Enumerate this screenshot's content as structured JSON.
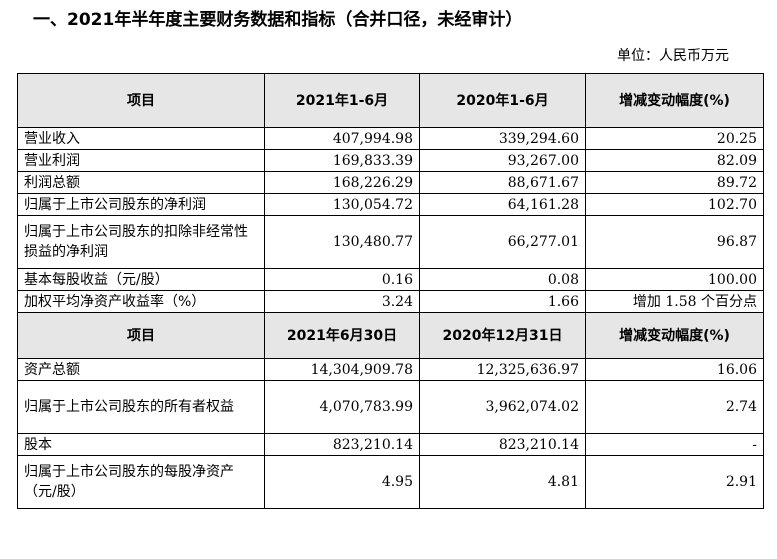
{
  "title": "一、2021年半年度主要财务数据和指标（合并口径，未经审计）",
  "unit": "单位：人民币万元",
  "section1": {
    "headers": [
      "项目",
      "2021年1-6月",
      "2020年1-6月",
      "增减变动幅度(%)"
    ],
    "rows": [
      [
        "营业收入",
        "407,994.98",
        "339,294.60",
        "20.25"
      ],
      [
        "营业利润",
        "169,833.39",
        "93,267.00",
        "82.09"
      ],
      [
        "利润总额",
        "168,226.29",
        "88,671.67",
        "89.72"
      ],
      [
        "归属于上市公司股东的净利润",
        "130,054.72",
        "64,161.28",
        "102.70"
      ],
      [
        "归属于上市公司股东的扣除非经常性损益的净利润",
        "130,480.77",
        "66,277.01",
        "96.87"
      ],
      [
        "基本每股收益（元/股）",
        "0.16",
        "0.08",
        "100.00"
      ],
      [
        "加权平均净资产收益率（%）",
        "3.24",
        "1.66",
        "增加 1.58 个百分点"
      ]
    ]
  },
  "section2": {
    "headers": [
      "项目",
      "2021年6月30日",
      "2020年12月31日",
      "增减变动幅度(%)"
    ],
    "rows": [
      [
        "资产总额",
        "14,304,909.78",
        "12,325,636.97",
        "16.06"
      ],
      [
        "归属于上市公司股东的所有者权益",
        "4,070,783.99",
        "3,962,074.02",
        "2.74"
      ],
      [
        "股本",
        "823,210.14",
        "823,210.14",
        "-"
      ],
      [
        "归属于上市公司股东的每股净资产（元/股）",
        "4.95",
        "4.81",
        "2.91"
      ]
    ]
  }
}
